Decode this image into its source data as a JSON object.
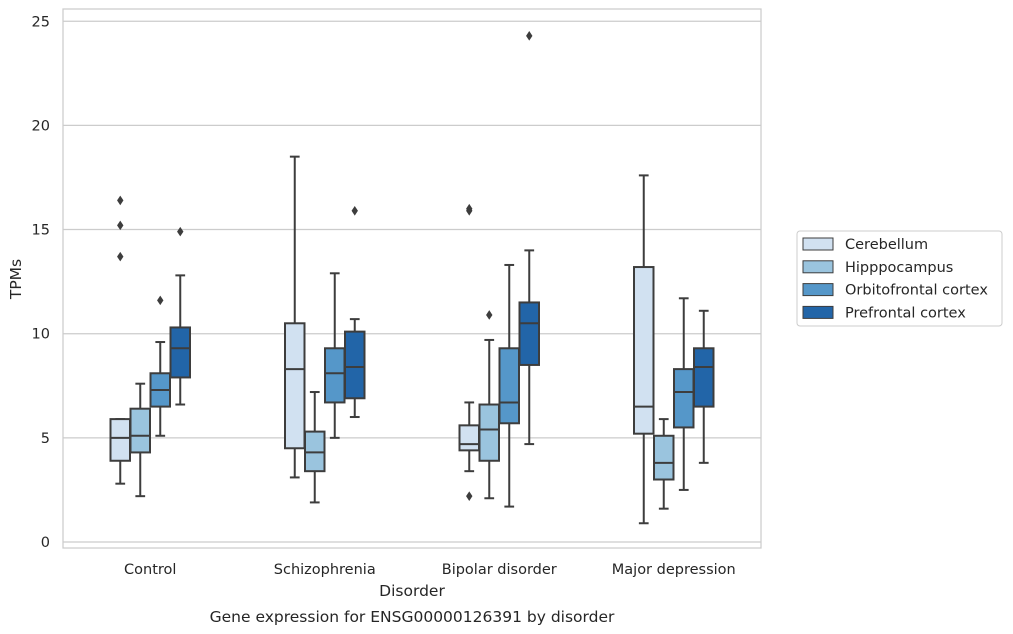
{
  "chart_data": {
    "type": "box",
    "xlabel": "Disorder",
    "ylabel": "TPMs",
    "ylim": [
      -0.2,
      25.6
    ],
    "yticks": [
      0,
      5,
      10,
      15,
      20,
      25
    ],
    "grid": "horizontal",
    "legend_placement": "outside-right",
    "categories": [
      "Control",
      "Schizophrenia",
      "Bipolar disorder",
      "Major depression"
    ],
    "series": [
      {
        "name": "Cerebellum",
        "color": "#d1e1f1",
        "boxes": [
          {
            "whislo": 2.8,
            "q1": 3.9,
            "med": 5.0,
            "q3": 5.9,
            "whishi": 5.9,
            "fliers": [
              13.7,
              15.2,
              16.4
            ]
          },
          {
            "whislo": 3.1,
            "q1": 4.5,
            "med": 8.3,
            "q3": 10.5,
            "whishi": 18.5,
            "fliers": []
          },
          {
            "whislo": 3.4,
            "q1": 4.4,
            "med": 4.7,
            "q3": 5.6,
            "whishi": 6.7,
            "fliers": [
              2.2,
              15.9,
              16.0
            ]
          },
          {
            "whislo": 0.9,
            "q1": 5.2,
            "med": 6.5,
            "q3": 13.2,
            "whishi": 17.6,
            "fliers": []
          }
        ]
      },
      {
        "name": "Hipppocampus",
        "color": "#9ac4de",
        "boxes": [
          {
            "whislo": 2.2,
            "q1": 4.3,
            "med": 5.1,
            "q3": 6.4,
            "whishi": 7.6,
            "fliers": []
          },
          {
            "whislo": 1.9,
            "q1": 3.4,
            "med": 4.3,
            "q3": 5.3,
            "whishi": 7.2,
            "fliers": []
          },
          {
            "whislo": 2.1,
            "q1": 3.9,
            "med": 5.4,
            "q3": 6.6,
            "whishi": 9.7,
            "fliers": [
              10.9
            ]
          },
          {
            "whislo": 1.6,
            "q1": 3.0,
            "med": 3.8,
            "q3": 5.1,
            "whishi": 5.9,
            "fliers": []
          }
        ]
      },
      {
        "name": "Orbitofrontal cortex",
        "color": "#5597c9",
        "boxes": [
          {
            "whislo": 5.1,
            "q1": 6.5,
            "med": 7.3,
            "q3": 8.1,
            "whishi": 9.6,
            "fliers": [
              11.6
            ]
          },
          {
            "whislo": 5.0,
            "q1": 6.7,
            "med": 8.1,
            "q3": 9.3,
            "whishi": 12.9,
            "fliers": []
          },
          {
            "whislo": 1.7,
            "q1": 5.7,
            "med": 6.7,
            "q3": 9.3,
            "whishi": 13.3,
            "fliers": []
          },
          {
            "whislo": 2.5,
            "q1": 5.5,
            "med": 7.2,
            "q3": 8.3,
            "whishi": 11.7,
            "fliers": []
          }
        ]
      },
      {
        "name": "Prefrontal cortex",
        "color": "#2265a8",
        "boxes": [
          {
            "whislo": 6.6,
            "q1": 7.9,
            "med": 9.3,
            "q3": 10.3,
            "whishi": 12.8,
            "fliers": [
              14.9
            ]
          },
          {
            "whislo": 6.0,
            "q1": 6.9,
            "med": 8.4,
            "q3": 10.1,
            "whishi": 10.7,
            "fliers": [
              15.9
            ]
          },
          {
            "whislo": 4.7,
            "q1": 8.5,
            "med": 10.5,
            "q3": 11.5,
            "whishi": 14.0,
            "fliers": [
              24.3
            ]
          },
          {
            "whislo": 3.8,
            "q1": 6.5,
            "med": 8.4,
            "q3": 9.3,
            "whishi": 11.1,
            "fliers": []
          }
        ]
      }
    ],
    "caption": "Gene expression for ENSG00000126391 by disorder"
  }
}
